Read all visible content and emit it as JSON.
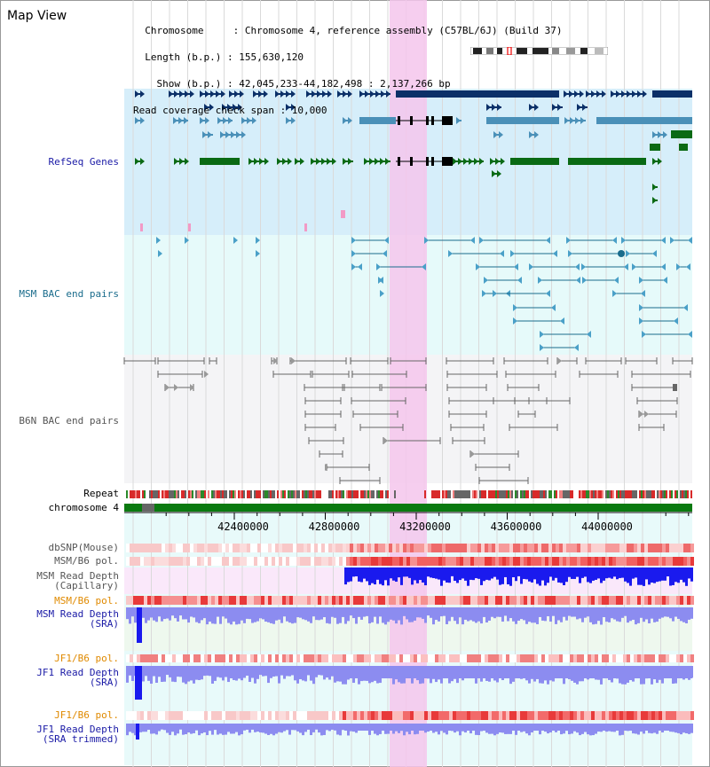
{
  "header": {
    "map_view": "Map View",
    "lines": [
      "  Chromosome     : Chromosome 4, reference assembly (C57BL/6J) (Build 37)",
      "  Length (b.p.) : 155,630,120",
      "    Show (b.p.) : 42,045,233-44,182,498 : 2,137,266 bp",
      "Read coverage check span : 10,000"
    ]
  },
  "tracks": {
    "refseq": "RefSeq Genes",
    "msm_bac": "MSM BAC end pairs",
    "b6n_bac": "B6N BAC end pairs",
    "repeat": "Repeat",
    "chromosome": "chromosome 4",
    "dbsnp": "dbSNP(Mouse)",
    "msm_b6_pol": "MSM/B6 pol.",
    "msm_depth_cap_1": "MSM Read Depth",
    "msm_depth_cap_2": "(Capillary)",
    "msm_b6_pol_2": "MSM/B6 pol.",
    "msm_depth_sra_1": "MSM Read Depth",
    "msm_depth_sra_2": "(SRA)",
    "jf1_b6_pol": "JF1/B6 pol.",
    "jf1_depth_sra_1": "JF1 Read Depth",
    "jf1_depth_sra_2": "(SRA)",
    "jf1_b6_pol_2": "JF1/B6 pol.",
    "jf1_depth_trim_1": "JF1 Read Depth",
    "jf1_depth_trim_2": "(SRA trimmed)"
  },
  "axis": {
    "ticks": [
      "42400000",
      "42800000",
      "43200000",
      "43600000",
      "44000000"
    ]
  },
  "colors": {
    "highlight": "#f5c6ec",
    "refseq_bg": "#d6eefa",
    "msm_bg": "#e6fafa",
    "b6n_bg": "#f4f4f6",
    "navy": "#0b3068",
    "steel": "#4a90b8",
    "green": "#0a6a14",
    "depth_blue": "#1a1aee",
    "depth_light": "#8c8cf0",
    "pol_red": "#e83a3a"
  }
}
